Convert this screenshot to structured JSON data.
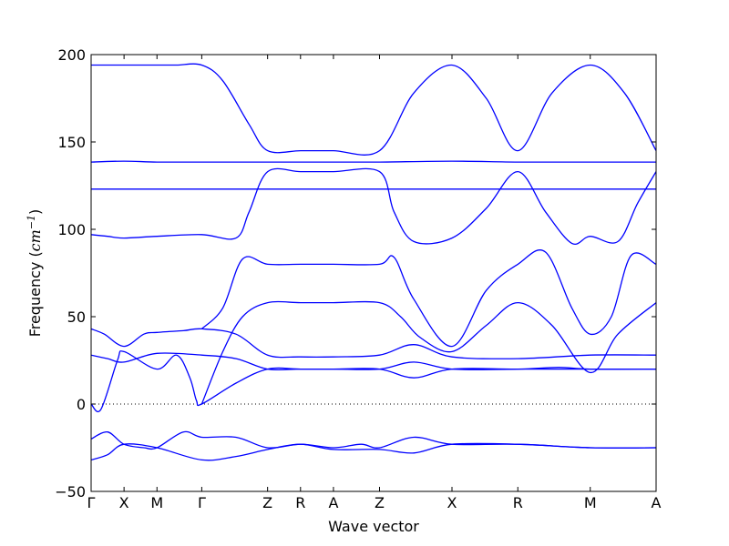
{
  "chart_data": {
    "type": "line",
    "title": "",
    "xlabel": "Wave vector",
    "ylabel": "Frequency",
    "ylabel_unit": "cm",
    "ylabel_unit_exponent": "−1",
    "ylim": [
      -50,
      200
    ],
    "yticks": [
      -50,
      0,
      50,
      100,
      150,
      200
    ],
    "ytick_labels": [
      "−50",
      "0",
      "50",
      "100",
      "150",
      "200"
    ],
    "xticks": [
      {
        "label": "Γ",
        "x": 0.0
      },
      {
        "label": "X",
        "x": 0.5
      },
      {
        "label": "M",
        "x": 1.0
      },
      {
        "label": "Γ",
        "x": 1.68
      },
      {
        "label": "Z",
        "x": 2.68
      },
      {
        "label": "R",
        "x": 3.18
      },
      {
        "label": "A",
        "x": 3.68
      },
      {
        "label": "Z",
        "x": 4.38
      },
      {
        "label": "X",
        "x": 5.48
      },
      {
        "label": "R",
        "x": 6.48
      },
      {
        "label": "M",
        "x": 7.58
      },
      {
        "label": "A",
        "x": 8.58
      }
    ],
    "xlim": [
      0,
      8.58
    ],
    "zero_line": {
      "y": 0,
      "style": "dotted"
    },
    "grid": false,
    "line_color": "#0000ff",
    "series": [
      {
        "x": [
          0,
          0.25,
          0.5,
          0.8,
          1.0,
          1.3,
          1.68,
          2.0,
          2.4,
          2.68,
          3.18,
          3.68,
          4.38,
          4.9,
          5.48,
          6.0,
          6.48,
          7.0,
          7.58,
          8.1,
          8.58
        ],
        "y": [
          194,
          194,
          194,
          194,
          194,
          194,
          194,
          185,
          160,
          145,
          145,
          145,
          145,
          178,
          194,
          175,
          145,
          178,
          194,
          178,
          145
        ]
      },
      {
        "x": [
          0,
          0.5,
          1.0,
          1.68,
          2.68,
          3.18,
          3.68,
          4.38,
          5.48,
          6.48,
          7.58,
          8.58
        ],
        "y": [
          138.5,
          139,
          138.5,
          138.5,
          138.5,
          138.5,
          138.5,
          138.5,
          139,
          138.5,
          138.5,
          138.5
        ]
      },
      {
        "x": [
          0,
          0.5,
          1.0,
          1.68,
          2.68,
          3.18,
          3.68,
          4.38,
          5.48,
          6.48,
          7.58,
          8.58
        ],
        "y": [
          123,
          123,
          123,
          123,
          123,
          123,
          123,
          123,
          123,
          123,
          123,
          123
        ]
      },
      {
        "x": [
          0,
          0.25,
          0.5,
          1.0,
          1.68,
          2.2,
          2.4,
          2.68,
          3.18,
          3.68,
          4.38,
          4.6,
          4.9,
          5.48,
          6.0,
          6.48,
          6.9,
          7.3,
          7.58,
          8.0,
          8.3,
          8.58
        ],
        "y": [
          97,
          96,
          95,
          96,
          97,
          95,
          110,
          133,
          133,
          133,
          133,
          110,
          93,
          95,
          112,
          133,
          110,
          92,
          96,
          93,
          115,
          133
        ]
      },
      {
        "x": [
          1.68,
          2.0,
          2.3,
          2.68,
          3.18,
          3.68,
          4.38,
          4.6,
          4.9,
          5.48,
          6.0,
          6.48,
          6.9,
          7.3,
          7.58,
          7.9,
          8.2,
          8.58
        ],
        "y": [
          43,
          55,
          83,
          80,
          80,
          80,
          80,
          84,
          60,
          33,
          65,
          80,
          87,
          55,
          40,
          50,
          85,
          80
        ]
      },
      {
        "x": [
          1.68,
          2.0,
          2.3,
          2.68,
          3.18,
          3.68,
          4.38,
          4.7,
          5.0,
          5.48,
          6.0,
          6.48,
          7.0,
          7.58,
          8.0,
          8.58
        ],
        "y": [
          0,
          30,
          50,
          58,
          58,
          58,
          58,
          50,
          38,
          30,
          45,
          58,
          45,
          18,
          40,
          58
        ]
      },
      {
        "x": [
          0,
          0.2,
          0.5,
          0.8,
          1.0,
          1.4,
          1.68,
          2.2,
          2.68,
          3.18,
          3.68,
          4.38,
          4.9,
          5.48,
          6.48,
          7.58,
          8.58
        ],
        "y": [
          43,
          40,
          33,
          40,
          41,
          42,
          43,
          40,
          28,
          27,
          27,
          28,
          34,
          27,
          26,
          28,
          28
        ]
      },
      {
        "x": [
          0,
          0.25,
          0.5,
          1.0,
          1.68,
          2.2,
          2.68,
          3.18,
          3.68,
          4.38,
          4.9,
          5.48,
          6.48,
          7.1,
          7.58,
          8.58
        ],
        "y": [
          28,
          26,
          24,
          29,
          28,
          26,
          20,
          20,
          20,
          20,
          24,
          20,
          20,
          21,
          20,
          20
        ]
      },
      {
        "x": [
          0,
          0.15,
          0.4,
          0.5,
          1.0,
          1.3,
          1.5,
          1.6,
          1.68,
          2.2,
          2.68,
          3.18,
          3.68,
          4.38,
          4.9,
          5.48,
          6.48,
          7.58,
          8.58
        ],
        "y": [
          0,
          -3,
          25,
          30,
          20,
          28,
          15,
          2,
          0,
          12,
          20,
          20,
          20,
          20,
          15,
          20,
          20,
          20,
          20
        ]
      },
      {
        "x": [
          0,
          0.25,
          0.5,
          0.8,
          1.0,
          1.4,
          1.68,
          2.2,
          2.68,
          3.18,
          3.68,
          4.1,
          4.38,
          4.9,
          5.48,
          6.48,
          7.58,
          8.58
        ],
        "y": [
          -20,
          -16,
          -23,
          -25,
          -25,
          -16,
          -19,
          -19,
          -25,
          -23,
          -25,
          -23,
          -25,
          -19,
          -23,
          -23,
          -25,
          -25
        ]
      },
      {
        "x": [
          0,
          0.25,
          0.5,
          1.0,
          1.68,
          2.2,
          2.68,
          3.18,
          3.68,
          4.38,
          4.9,
          5.48,
          6.48,
          7.58,
          8.58
        ],
        "y": [
          -32,
          -29,
          -23,
          -25,
          -32,
          -30,
          -26,
          -23,
          -26,
          -26,
          -28,
          -23,
          -23,
          -25,
          -25
        ]
      }
    ]
  }
}
